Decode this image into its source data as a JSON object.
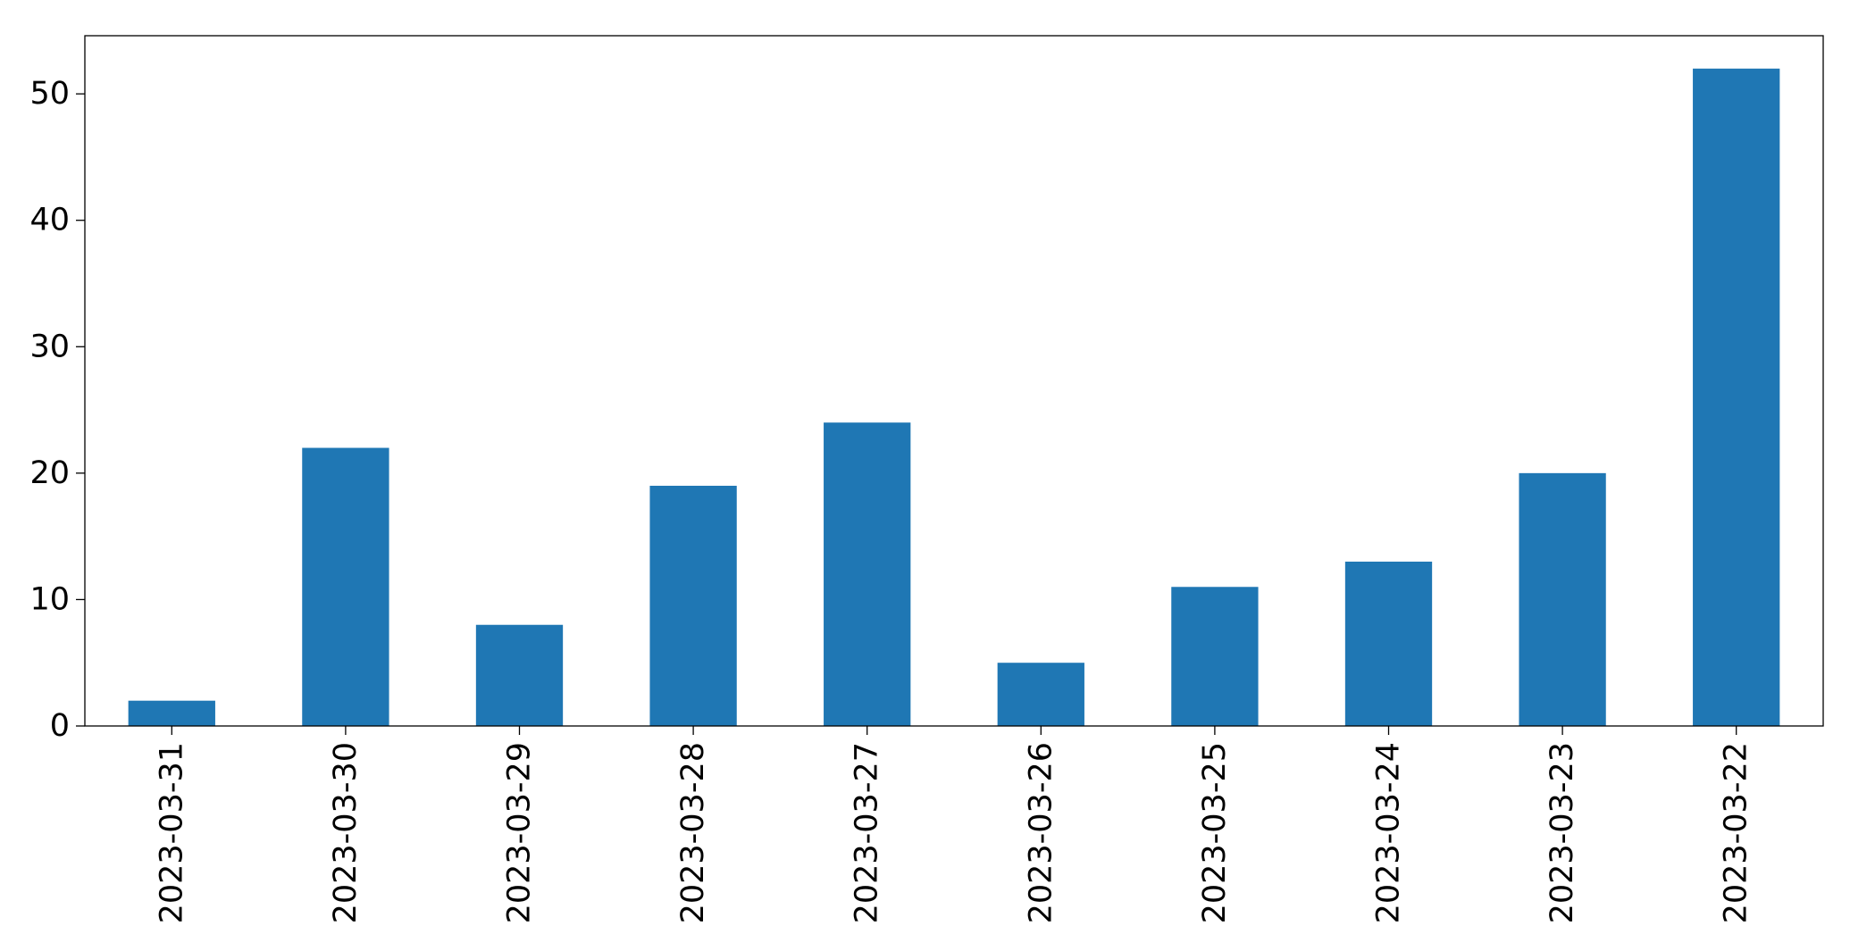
{
  "chart_data": {
    "type": "bar",
    "title": "",
    "xlabel": "",
    "ylabel": "",
    "categories": [
      "2023-03-31",
      "2023-03-30",
      "2023-03-29",
      "2023-03-28",
      "2023-03-27",
      "2023-03-26",
      "2023-03-25",
      "2023-03-24",
      "2023-03-23",
      "2023-03-22"
    ],
    "values": [
      2,
      22,
      8,
      19,
      24,
      5,
      11,
      13,
      20,
      52
    ],
    "ylim": [
      0,
      54.6
    ],
    "yticks": [
      0,
      10,
      20,
      30,
      40,
      50
    ],
    "grid": false,
    "bar_color": "#1f77b4",
    "x_tick_rotation": "vertical"
  }
}
